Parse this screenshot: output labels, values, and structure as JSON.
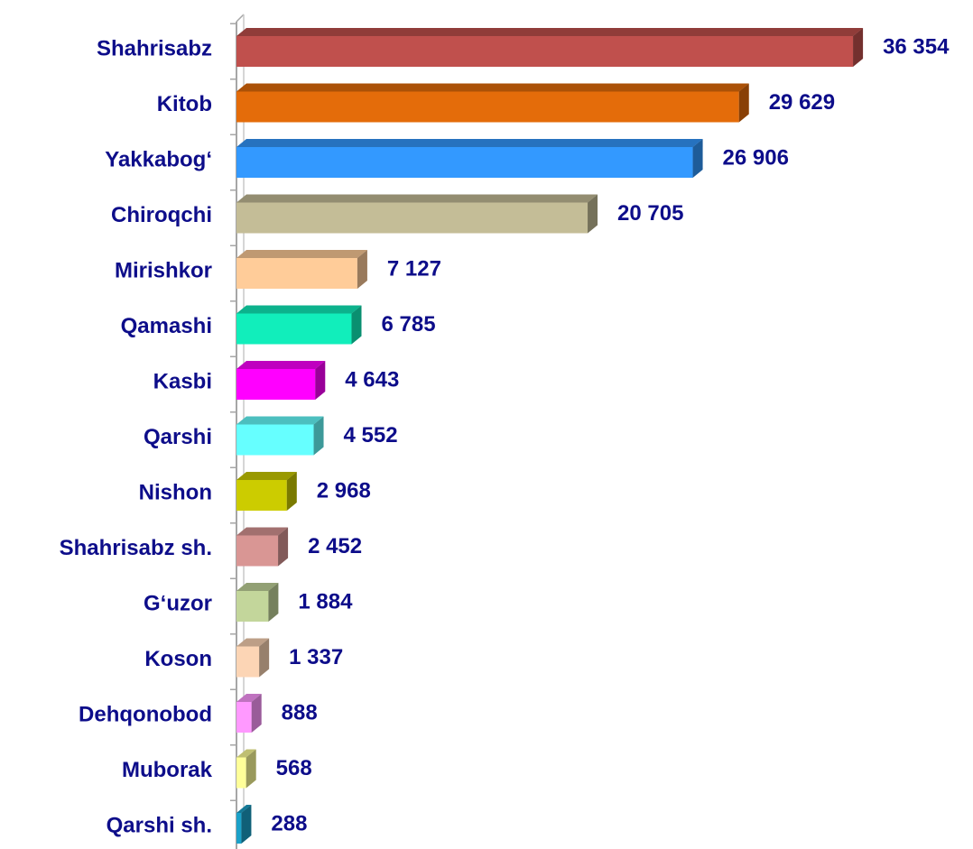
{
  "chart_data": {
    "type": "bar",
    "orientation": "horizontal",
    "categories": [
      "Shahrisabz",
      "Kitob",
      "Yakkabog‘",
      "Chiroqchi",
      "Mirishkor",
      "Qamashi",
      "Kasbi",
      "Qarshi",
      "Nishon",
      "Shahrisabz sh.",
      "G‘uzor",
      "Koson",
      "Dehqonobod",
      "Muborak",
      "Qarshi sh."
    ],
    "values": [
      36354,
      29629,
      26906,
      20705,
      7127,
      6785,
      4643,
      4552,
      2968,
      2452,
      1884,
      1337,
      888,
      568,
      288
    ],
    "value_labels": [
      "36 354",
      "29 629",
      "26 906",
      "20 705",
      "7 127",
      "6 785",
      "4 643",
      "4 552",
      "2 968",
      "2 452",
      "1 884",
      "1 337",
      "888",
      "568",
      "288"
    ],
    "colors": [
      "#c0504d",
      "#e46c0a",
      "#3399ff",
      "#c4bd97",
      "#ffcc99",
      "#11eebb",
      "#ff00ff",
      "#66ffff",
      "#cccc00",
      "#d99694",
      "#c3d69b",
      "#fcd5b5",
      "#ff99ff",
      "#ffff99",
      "#1ba1c9"
    ],
    "xlim": [
      0,
      38000
    ]
  }
}
